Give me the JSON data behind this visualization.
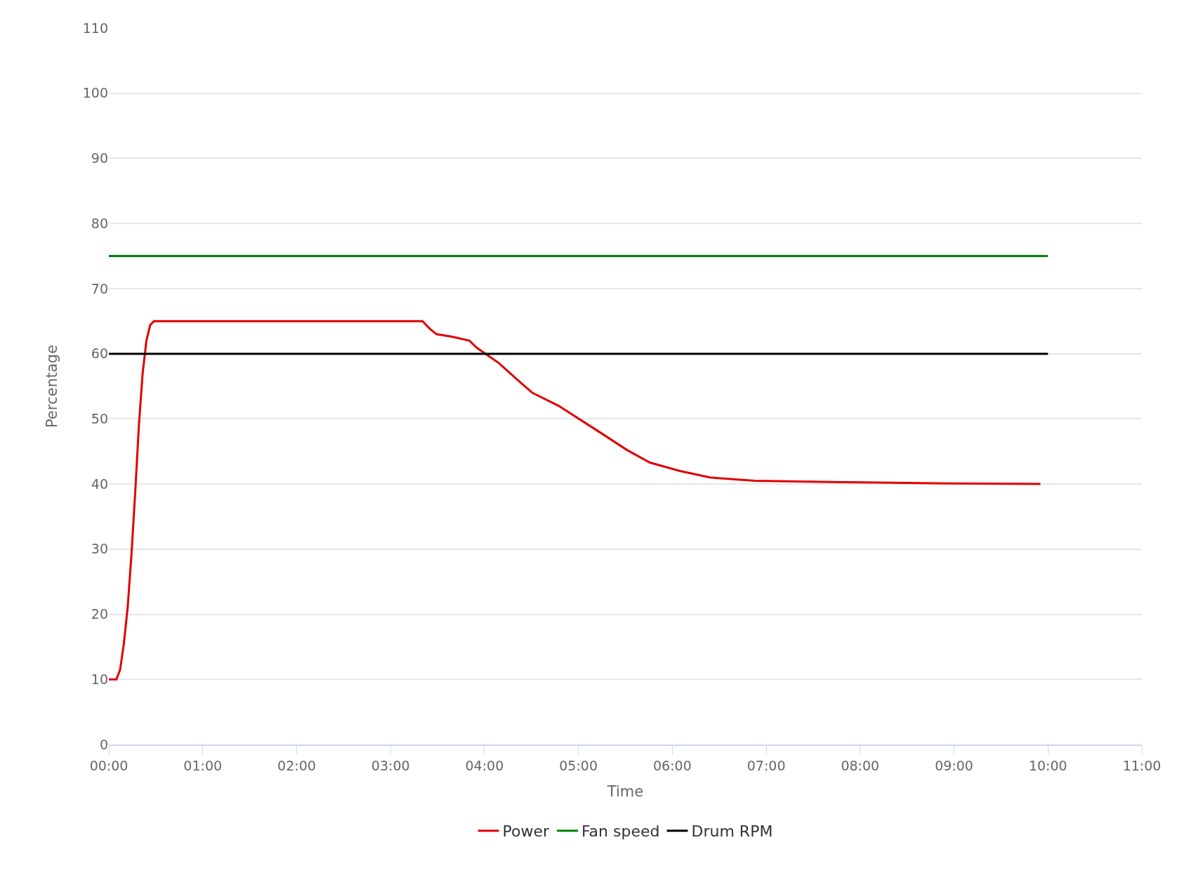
{
  "chart_data": {
    "type": "line",
    "xlabel": "Time",
    "ylabel": "Percentage",
    "xlim": [
      0,
      11
    ],
    "xticks": [
      {
        "value": 0,
        "label": "00:00"
      },
      {
        "value": 1,
        "label": "01:00"
      },
      {
        "value": 2,
        "label": "02:00"
      },
      {
        "value": 3,
        "label": "03:00"
      },
      {
        "value": 4,
        "label": "04:00"
      },
      {
        "value": 5,
        "label": "05:00"
      },
      {
        "value": 6,
        "label": "06:00"
      },
      {
        "value": 7,
        "label": "07:00"
      },
      {
        "value": 8,
        "label": "08:00"
      },
      {
        "value": 9,
        "label": "09:00"
      },
      {
        "value": 10,
        "label": "10:00"
      },
      {
        "value": 11,
        "label": "11:00"
      }
    ],
    "ylim": [
      0,
      110
    ],
    "yticks": [
      0,
      10,
      20,
      30,
      40,
      50,
      60,
      70,
      80,
      90,
      100,
      110
    ],
    "grid": "y",
    "legend": "bottom",
    "marker": "none",
    "line_style": "solid",
    "series": [
      {
        "name": "Power",
        "color": "#e00000",
        "x": [
          0,
          0.08,
          0.12,
          0.16,
          0.2,
          0.24,
          0.28,
          0.32,
          0.36,
          0.4,
          0.44,
          0.48,
          3.34,
          3.42,
          3.49,
          3.66,
          3.84,
          3.92,
          4.15,
          4.35,
          4.51,
          4.79,
          5.19,
          5.52,
          5.76,
          6.08,
          6.4,
          6.88,
          7.69,
          8.9,
          9.92
        ],
        "values": [
          10,
          10,
          11.5,
          15.5,
          21,
          29,
          38.5,
          49,
          57,
          62,
          64.4,
          65,
          65,
          63.8,
          63,
          62.6,
          62,
          60.9,
          58.6,
          56,
          54,
          52,
          48.3,
          45.2,
          43.3,
          42,
          41,
          40.5,
          40.3,
          40.1,
          40
        ]
      },
      {
        "name": "Fan speed",
        "color": "#008000",
        "x": [
          0,
          10
        ],
        "values": [
          75,
          75
        ]
      },
      {
        "name": "Drum RPM",
        "color": "#000000",
        "x": [
          0,
          10
        ],
        "values": [
          60,
          60
        ]
      }
    ]
  }
}
